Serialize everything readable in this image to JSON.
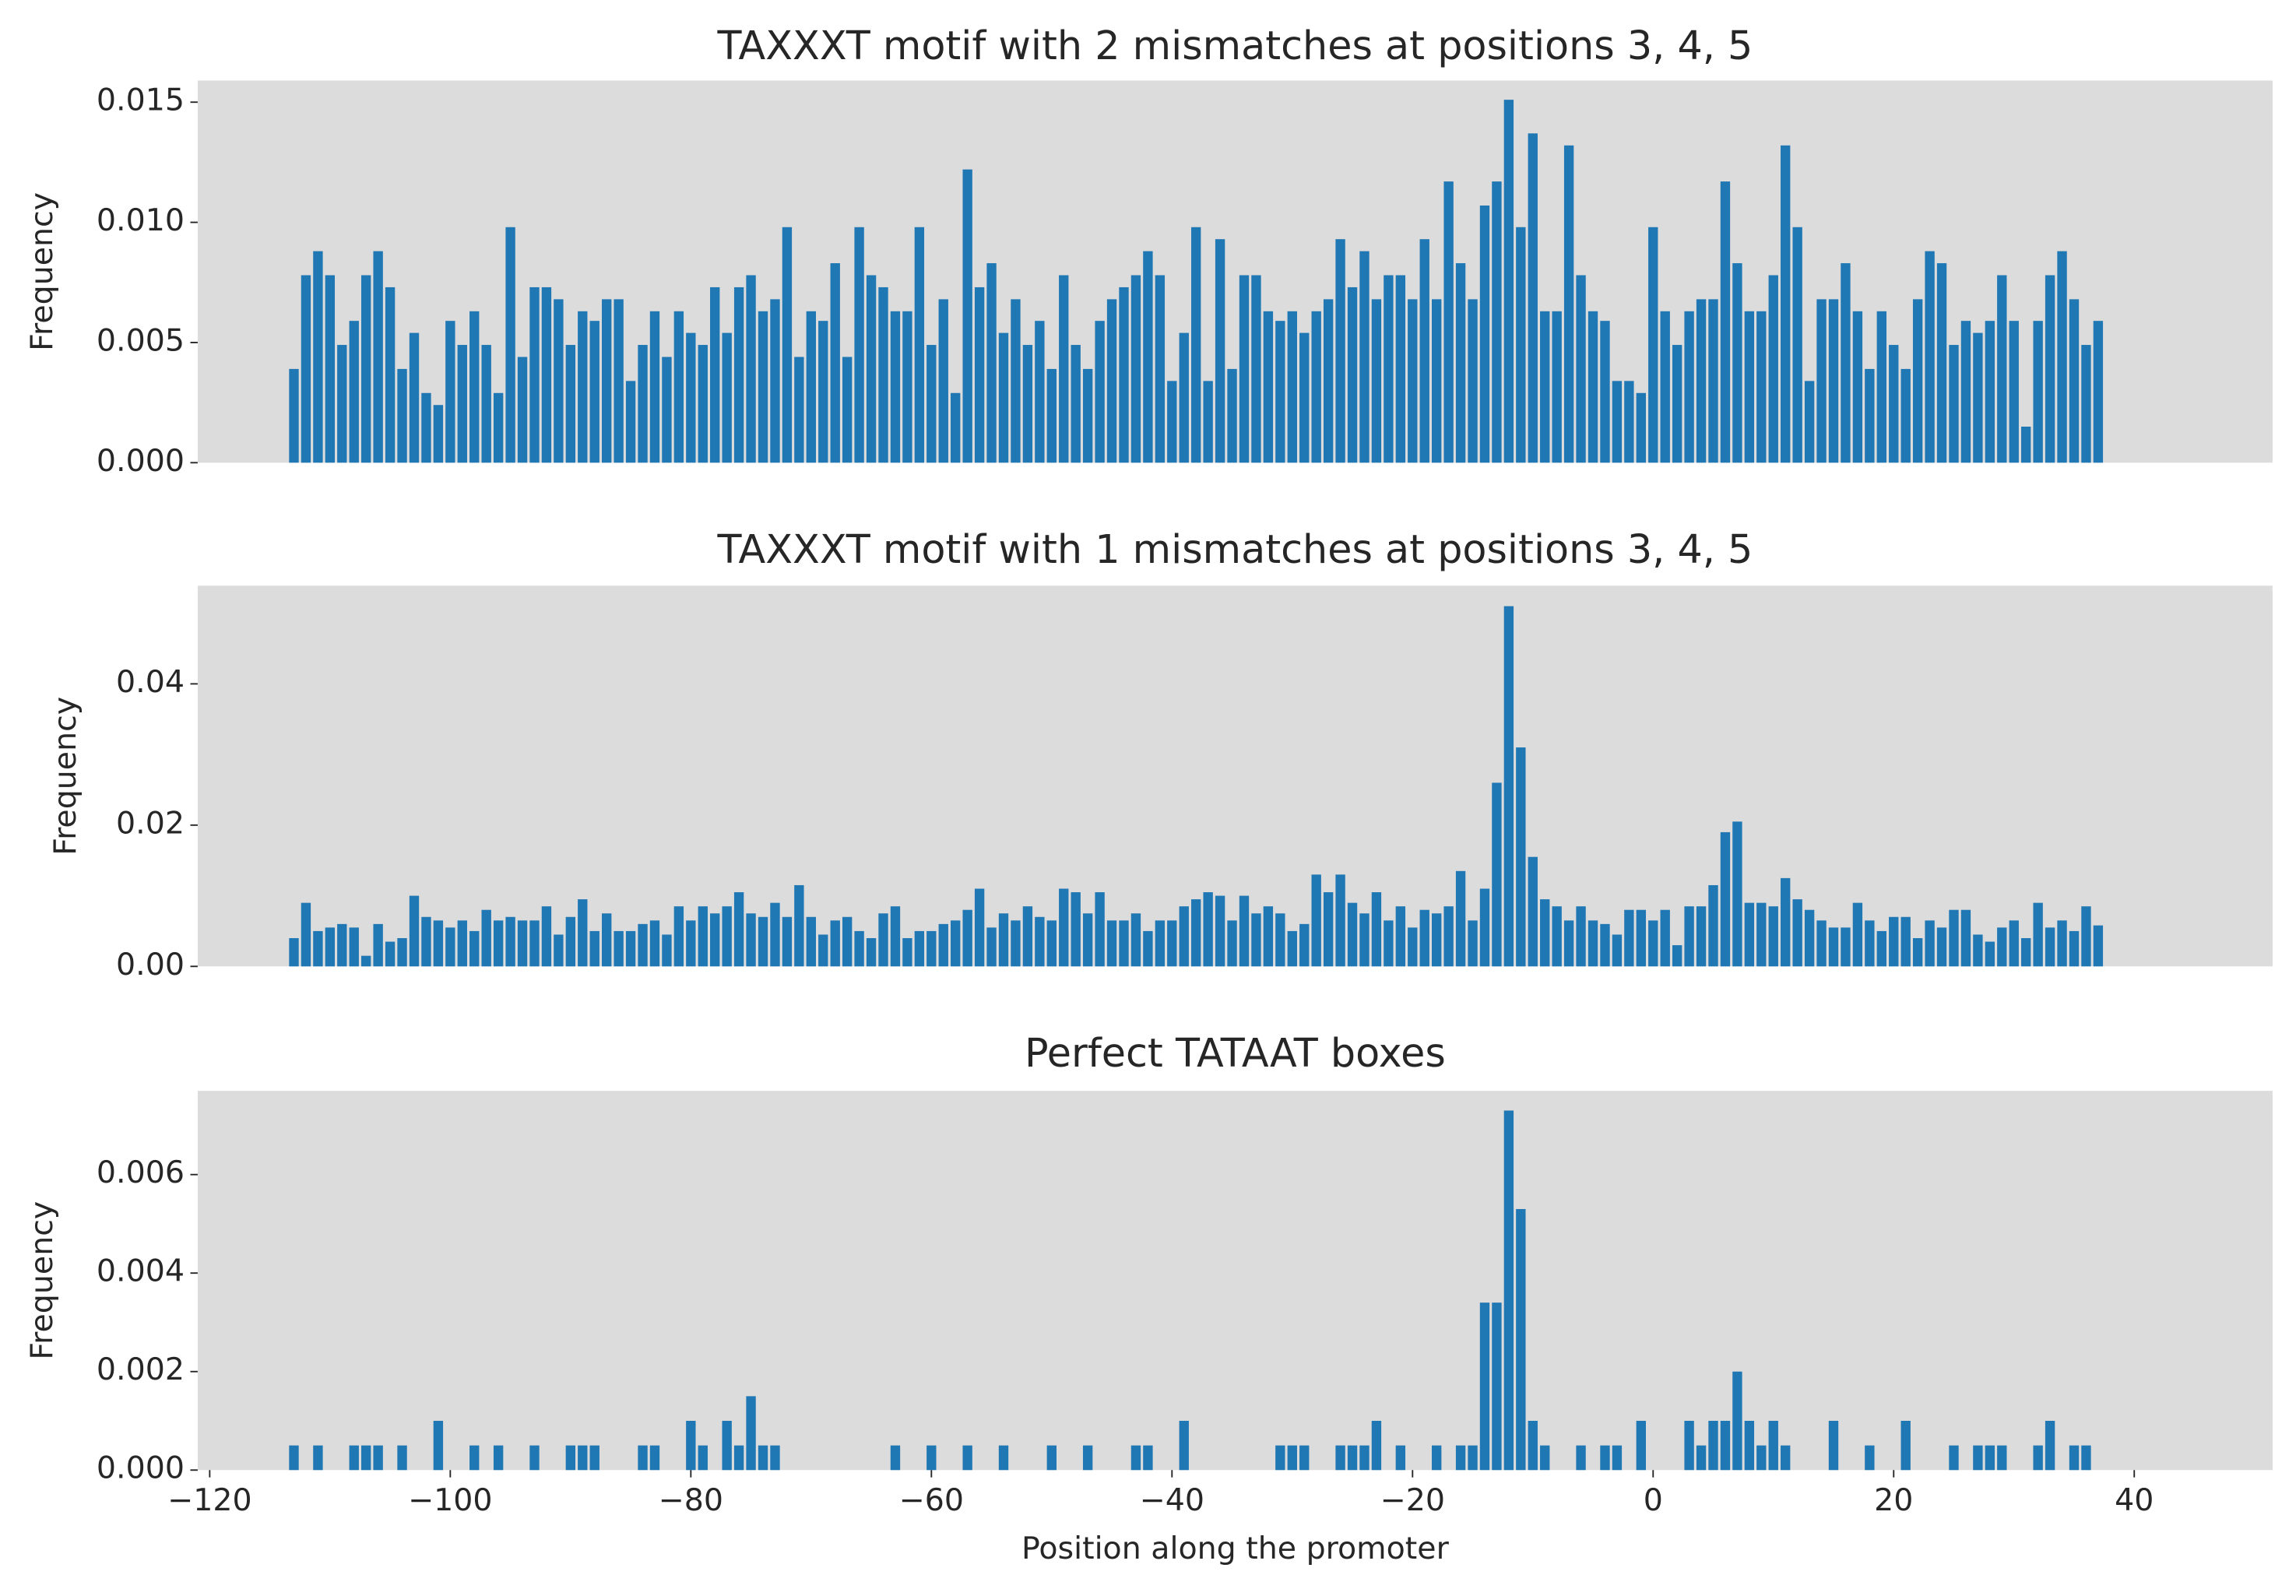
{
  "chart_data": [
    {
      "type": "bar",
      "title": "TAXXXT motif with 2 mismatches at positions 3, 4, 5",
      "y_label": "Frequency",
      "color": "#1f77b4",
      "x": [
        -113,
        -112,
        -111,
        -110,
        -109,
        -108,
        -107,
        -106,
        -105,
        -104,
        -103,
        -102,
        -101,
        -100,
        -99,
        -98,
        -97,
        -96,
        -95,
        -94,
        -93,
        -92,
        -91,
        -90,
        -89,
        -88,
        -87,
        -86,
        -85,
        -84,
        -83,
        -82,
        -81,
        -80,
        -79,
        -78,
        -77,
        -76,
        -75,
        -74,
        -73,
        -72,
        -71,
        -70,
        -69,
        -68,
        -67,
        -66,
        -65,
        -64,
        -63,
        -62,
        -61,
        -60,
        -59,
        -58,
        -57,
        -56,
        -55,
        -54,
        -53,
        -52,
        -51,
        -50,
        -49,
        -48,
        -47,
        -46,
        -45,
        -44,
        -43,
        -42,
        -41,
        -40,
        -39,
        -38,
        -37,
        -36,
        -35,
        -34,
        -33,
        -32,
        -31,
        -30,
        -29,
        -28,
        -27,
        -26,
        -25,
        -24,
        -23,
        -22,
        -21,
        -20,
        -19,
        -18,
        -17,
        -16,
        -15,
        -14,
        -13,
        -12,
        -11,
        -10,
        -9,
        -8,
        -7,
        -6,
        -5,
        -4,
        -3,
        -2,
        -1,
        0,
        1,
        2,
        3,
        4,
        5,
        6,
        7,
        8,
        9,
        10,
        11,
        12,
        13,
        14,
        15,
        16,
        17,
        18,
        19,
        20,
        21,
        22,
        23,
        24,
        25,
        26,
        27,
        28,
        29,
        30,
        31,
        32,
        33,
        34,
        35,
        36,
        37
      ],
      "values": [
        0.0039,
        0.0078,
        0.0088,
        0.0078,
        0.0049,
        0.0059,
        0.0078,
        0.0088,
        0.0073,
        0.0039,
        0.0054,
        0.0029,
        0.0024,
        0.0059,
        0.0049,
        0.0063,
        0.0049,
        0.0029,
        0.0098,
        0.0044,
        0.0073,
        0.0073,
        0.0068,
        0.0049,
        0.0063,
        0.0059,
        0.0068,
        0.0068,
        0.0034,
        0.0049,
        0.0063,
        0.0044,
        0.0063,
        0.0054,
        0.0049,
        0.0073,
        0.0054,
        0.0073,
        0.0078,
        0.0063,
        0.0068,
        0.0098,
        0.0044,
        0.0063,
        0.0059,
        0.0083,
        0.0044,
        0.0098,
        0.0078,
        0.0073,
        0.0063,
        0.0063,
        0.0098,
        0.0049,
        0.0068,
        0.0029,
        0.0122,
        0.0073,
        0.0083,
        0.0054,
        0.0068,
        0.0049,
        0.0059,
        0.0039,
        0.0078,
        0.0049,
        0.0039,
        0.0059,
        0.0068,
        0.0073,
        0.0078,
        0.0088,
        0.0078,
        0.0034,
        0.0054,
        0.0098,
        0.0034,
        0.0093,
        0.0039,
        0.0078,
        0.0078,
        0.0063,
        0.0059,
        0.0063,
        0.0054,
        0.0063,
        0.0068,
        0.0093,
        0.0073,
        0.0088,
        0.0068,
        0.0078,
        0.0078,
        0.0068,
        0.0093,
        0.0068,
        0.0117,
        0.0083,
        0.0068,
        0.0107,
        0.0117,
        0.0151,
        0.0098,
        0.0137,
        0.0063,
        0.0063,
        0.0132,
        0.0078,
        0.0063,
        0.0059,
        0.0034,
        0.0034,
        0.0029,
        0.0098,
        0.0063,
        0.0049,
        0.0063,
        0.0068,
        0.0068,
        0.0117,
        0.0083,
        0.0063,
        0.0063,
        0.0078,
        0.0132,
        0.0098,
        0.0034,
        0.0068,
        0.0068,
        0.0083,
        0.0063,
        0.0039,
        0.0063,
        0.0049,
        0.0039,
        0.0068,
        0.0088,
        0.0083,
        0.0049,
        0.0059,
        0.0054,
        0.0059,
        0.0078,
        0.0059,
        0.0015,
        0.0059,
        0.0078,
        0.0088,
        0.0068,
        0.0049,
        0.0059
      ],
      "xlim": [
        -121,
        51.5
      ],
      "ylim": [
        0,
        0.0159
      ],
      "yticks": [
        {
          "value": 0,
          "label": "0.000"
        },
        {
          "value": 0.005,
          "label": "0.005"
        },
        {
          "value": 0.01,
          "label": "0.010"
        },
        {
          "value": 0.015,
          "label": "0.015"
        }
      ]
    },
    {
      "type": "bar",
      "title": "TAXXXT motif with 1 mismatches at positions 3, 4, 5",
      "y_label": "Frequency",
      "color": "#1f77b4",
      "x": [
        -113,
        -112,
        -111,
        -110,
        -109,
        -108,
        -107,
        -106,
        -105,
        -104,
        -103,
        -102,
        -101,
        -100,
        -99,
        -98,
        -97,
        -96,
        -95,
        -94,
        -93,
        -92,
        -91,
        -90,
        -89,
        -88,
        -87,
        -86,
        -85,
        -84,
        -83,
        -82,
        -81,
        -80,
        -79,
        -78,
        -77,
        -76,
        -75,
        -74,
        -73,
        -72,
        -71,
        -70,
        -69,
        -68,
        -67,
        -66,
        -65,
        -64,
        -63,
        -62,
        -61,
        -60,
        -59,
        -58,
        -57,
        -56,
        -55,
        -54,
        -53,
        -52,
        -51,
        -50,
        -49,
        -48,
        -47,
        -46,
        -45,
        -44,
        -43,
        -42,
        -41,
        -40,
        -39,
        -38,
        -37,
        -36,
        -35,
        -34,
        -33,
        -32,
        -31,
        -30,
        -29,
        -28,
        -27,
        -26,
        -25,
        -24,
        -23,
        -22,
        -21,
        -20,
        -19,
        -18,
        -17,
        -16,
        -15,
        -14,
        -13,
        -12,
        -11,
        -10,
        -9,
        -8,
        -7,
        -6,
        -5,
        -4,
        -3,
        -2,
        -1,
        0,
        1,
        2,
        3,
        4,
        5,
        6,
        7,
        8,
        9,
        10,
        11,
        12,
        13,
        14,
        15,
        16,
        17,
        18,
        19,
        20,
        21,
        22,
        23,
        24,
        25,
        26,
        27,
        28,
        29,
        30,
        31,
        32,
        33,
        34,
        35,
        36,
        37
      ],
      "values": [
        0.004,
        0.009,
        0.005,
        0.0055,
        0.006,
        0.0055,
        0.0015,
        0.006,
        0.0035,
        0.004,
        0.01,
        0.007,
        0.0065,
        0.0055,
        0.0065,
        0.005,
        0.008,
        0.0065,
        0.007,
        0.0065,
        0.0065,
        0.0085,
        0.0045,
        0.007,
        0.0095,
        0.005,
        0.0075,
        0.005,
        0.005,
        0.006,
        0.0065,
        0.0045,
        0.0085,
        0.0065,
        0.0085,
        0.0075,
        0.0085,
        0.0105,
        0.0075,
        0.007,
        0.009,
        0.007,
        0.0115,
        0.007,
        0.0045,
        0.0065,
        0.007,
        0.005,
        0.004,
        0.0075,
        0.0085,
        0.004,
        0.005,
        0.005,
        0.006,
        0.0065,
        0.008,
        0.011,
        0.0055,
        0.0075,
        0.0065,
        0.0085,
        0.007,
        0.0065,
        0.011,
        0.0105,
        0.0075,
        0.0105,
        0.0065,
        0.0065,
        0.0075,
        0.005,
        0.0065,
        0.0065,
        0.0085,
        0.0095,
        0.0105,
        0.01,
        0.0065,
        0.01,
        0.0075,
        0.0085,
        0.0075,
        0.005,
        0.006,
        0.013,
        0.0105,
        0.013,
        0.009,
        0.0075,
        0.0105,
        0.0065,
        0.0085,
        0.0055,
        0.008,
        0.0075,
        0.0085,
        0.0135,
        0.0065,
        0.011,
        0.026,
        0.051,
        0.031,
        0.0155,
        0.0095,
        0.0085,
        0.0065,
        0.0085,
        0.0065,
        0.006,
        0.0045,
        0.008,
        0.008,
        0.0065,
        0.008,
        0.003,
        0.0085,
        0.0085,
        0.0115,
        0.019,
        0.0205,
        0.009,
        0.009,
        0.0085,
        0.0125,
        0.0095,
        0.008,
        0.0065,
        0.0055,
        0.0055,
        0.009,
        0.0065,
        0.005,
        0.007,
        0.007,
        0.004,
        0.0065,
        0.0055,
        0.008,
        0.008,
        0.0045,
        0.0035,
        0.0055,
        0.0065,
        0.004,
        0.009,
        0.0055,
        0.0065,
        0.005,
        0.0085,
        0.0058
      ],
      "xlim": [
        -121,
        51.5
      ],
      "ylim": [
        0,
        0.0539
      ],
      "yticks": [
        {
          "value": 0,
          "label": "0.00"
        },
        {
          "value": 0.02,
          "label": "0.02"
        },
        {
          "value": 0.04,
          "label": "0.04"
        }
      ]
    },
    {
      "type": "bar",
      "title": "Perfect TATAAT boxes",
      "y_label": "Frequency",
      "x_label": "Position along the promoter",
      "color": "#1f77b4",
      "x": [
        -113,
        -112,
        -111,
        -110,
        -109,
        -108,
        -107,
        -106,
        -105,
        -104,
        -103,
        -102,
        -101,
        -100,
        -99,
        -98,
        -97,
        -96,
        -95,
        -94,
        -93,
        -92,
        -91,
        -90,
        -89,
        -88,
        -87,
        -86,
        -85,
        -84,
        -83,
        -82,
        -81,
        -80,
        -79,
        -78,
        -77,
        -76,
        -75,
        -74,
        -73,
        -72,
        -71,
        -70,
        -69,
        -68,
        -67,
        -66,
        -65,
        -64,
        -63,
        -62,
        -61,
        -60,
        -59,
        -58,
        -57,
        -56,
        -55,
        -54,
        -53,
        -52,
        -51,
        -50,
        -49,
        -48,
        -47,
        -46,
        -45,
        -44,
        -43,
        -42,
        -41,
        -40,
        -39,
        -38,
        -37,
        -36,
        -35,
        -34,
        -33,
        -32,
        -31,
        -30,
        -29,
        -28,
        -27,
        -26,
        -25,
        -24,
        -23,
        -22,
        -21,
        -20,
        -19,
        -18,
        -17,
        -16,
        -15,
        -14,
        -13,
        -12,
        -11,
        -10,
        -9,
        -8,
        -7,
        -6,
        -5,
        -4,
        -3,
        -2,
        -1,
        0,
        1,
        2,
        3,
        4,
        5,
        6,
        7,
        8,
        9,
        10,
        11,
        12,
        13,
        14,
        15,
        16,
        17,
        18,
        19,
        20,
        21,
        22,
        23,
        24,
        25,
        26,
        27,
        28,
        29,
        30,
        31,
        32,
        33,
        34,
        35,
        36,
        37
      ],
      "values": [
        0.0005,
        0,
        0.0005,
        0,
        0,
        0.0005,
        0.0005,
        0.0005,
        0,
        0.0005,
        0,
        0,
        0.001,
        0,
        0,
        0.0005,
        0,
        0.0005,
        0,
        0,
        0.0005,
        0,
        0,
        0.0005,
        0.0005,
        0.0005,
        0,
        0,
        0,
        0.0005,
        0.0005,
        0,
        0,
        0.001,
        0.0005,
        0,
        0.001,
        0.0005,
        0.0015,
        0.0005,
        0.0005,
        0,
        0,
        0,
        0,
        0,
        0,
        0,
        0,
        0,
        0.0005,
        0,
        0,
        0.0005,
        0,
        0,
        0.0005,
        0,
        0,
        0.0005,
        0,
        0,
        0,
        0.0005,
        0,
        0,
        0.0005,
        0,
        0,
        0,
        0.0005,
        0.0005,
        0,
        0,
        0.001,
        0,
        0,
        0,
        0,
        0,
        0,
        0,
        0.0005,
        0.0005,
        0.0005,
        0,
        0,
        0.0005,
        0.0005,
        0.0005,
        0.001,
        0,
        0.0005,
        0,
        0,
        0.0005,
        0,
        0.0005,
        0.0005,
        0.0034,
        0.0034,
        0.0073,
        0.0053,
        0.001,
        0.0005,
        0,
        0,
        0.0005,
        0,
        0.0005,
        0.0005,
        0,
        0.001,
        0,
        0,
        0,
        0.001,
        0.0005,
        0.001,
        0.001,
        0.002,
        0.001,
        0.0005,
        0.001,
        0.0005,
        0,
        0,
        0,
        0.001,
        0,
        0,
        0.0005,
        0,
        0,
        0.001,
        0,
        0,
        0,
        0.0005,
        0,
        0.0005,
        0.0005,
        0.0005,
        0,
        0,
        0.0005,
        0.001,
        0,
        0.0005,
        0.0005,
        0
      ],
      "xlim": [
        -121,
        51.5
      ],
      "ylim": [
        0,
        0.0077
      ],
      "yticks": [
        {
          "value": 0,
          "label": "0.000"
        },
        {
          "value": 0.002,
          "label": "0.002"
        },
        {
          "value": 0.004,
          "label": "0.004"
        },
        {
          "value": 0.006,
          "label": "0.006"
        }
      ],
      "xticks": [
        {
          "value": -120,
          "label": "−120"
        },
        {
          "value": -100,
          "label": "−100"
        },
        {
          "value": -80,
          "label": "−80"
        },
        {
          "value": -60,
          "label": "−60"
        },
        {
          "value": -40,
          "label": "−40"
        },
        {
          "value": -20,
          "label": "−20"
        },
        0,
        20,
        40
      ]
    }
  ]
}
